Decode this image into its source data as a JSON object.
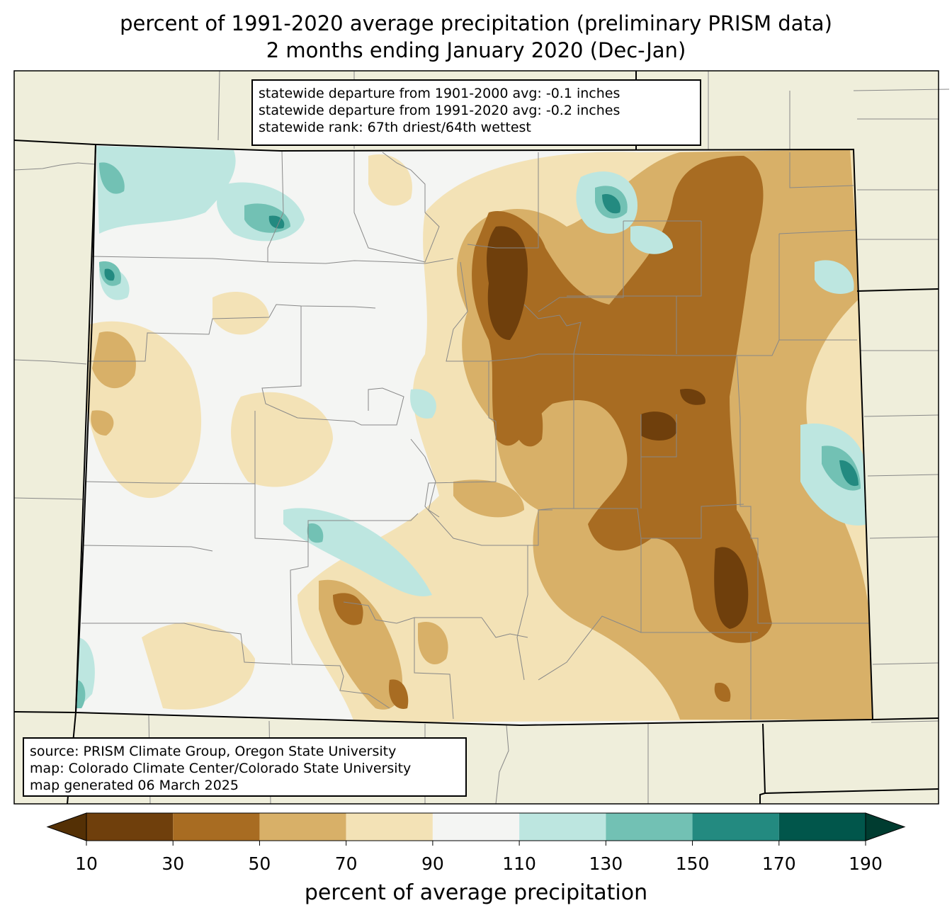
{
  "title_line1": "percent of 1991-2020 average precipitation (preliminary PRISM data)",
  "title_line2": "2 months ending January 2020 (Dec-Jan)",
  "stats": {
    "line1": "statewide departure from 1901-2000 avg: -0.1 inches",
    "line2": "statewide departure from 1991-2020 avg: -0.2 inches",
    "line3": "statewide rank: 67th driest/64th wettest"
  },
  "source": {
    "line1": "source: PRISM Climate Group, Oregon State University",
    "line2": "map: Colorado Climate Center/Colorado State University",
    "line3": "map generated 06 March 2025"
  },
  "colorbar": {
    "label": "percent of average precipitation",
    "ticks": [
      "10",
      "30",
      "50",
      "70",
      "90",
      "110",
      "130",
      "150",
      "170",
      "190"
    ],
    "colors": [
      "#6f3f0c",
      "#a86c22",
      "#d8b068",
      "#f3e2b6",
      "#f4f5f3",
      "#bde6e0",
      "#72c1b4",
      "#238a80",
      "#01564b"
    ],
    "under_color": "#543005",
    "over_color": "#003c30"
  },
  "colors": {
    "land": "#efeedb",
    "state_border": "#000000",
    "county_border": "#888888"
  }
}
